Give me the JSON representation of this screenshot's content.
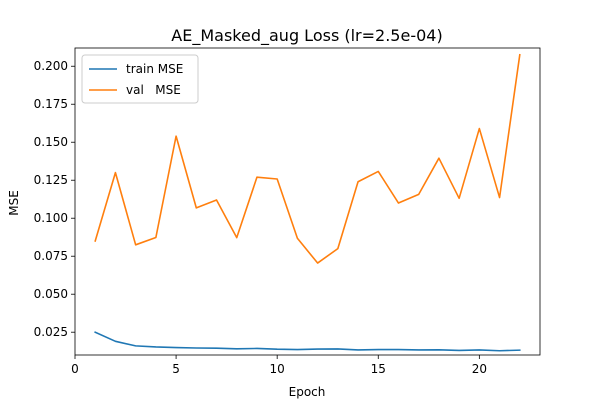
{
  "chart_data": {
    "type": "line",
    "title": "AE_Masked_aug Loss (lr=2.5e-04)",
    "xlabel": "Epoch",
    "ylabel": "MSE",
    "xlim": [
      0,
      23
    ],
    "ylim": [
      0.01,
      0.212
    ],
    "xticks": [
      0,
      5,
      10,
      15,
      20
    ],
    "yticks": [
      0.025,
      0.05,
      0.075,
      0.1,
      0.125,
      0.15,
      0.175,
      0.2
    ],
    "xtick_labels": [
      "0",
      "5",
      "10",
      "15",
      "20"
    ],
    "ytick_labels": [
      "0.025",
      "0.050",
      "0.075",
      "0.100",
      "0.125",
      "0.150",
      "0.175",
      "0.200"
    ],
    "grid": false,
    "legend_position": "top-left",
    "x": [
      1,
      2,
      3,
      4,
      5,
      6,
      7,
      8,
      9,
      10,
      11,
      12,
      13,
      14,
      15,
      16,
      17,
      18,
      19,
      20,
      21,
      22
    ],
    "series": [
      {
        "name": "train MSE",
        "color": "#1f77b4",
        "values": [
          0.025,
          0.019,
          0.016,
          0.0153,
          0.0149,
          0.0146,
          0.0145,
          0.0141,
          0.0143,
          0.0138,
          0.0136,
          0.0139,
          0.014,
          0.0133,
          0.0136,
          0.0136,
          0.0133,
          0.0134,
          0.013,
          0.0133,
          0.0128,
          0.0132
        ]
      },
      {
        "name": "val   MSE",
        "color": "#ff7f0e",
        "values": [
          0.085,
          0.13,
          0.0825,
          0.0873,
          0.154,
          0.1068,
          0.112,
          0.0872,
          0.127,
          0.1258,
          0.0868,
          0.0705,
          0.08,
          0.124,
          0.1308,
          0.11,
          0.1157,
          0.1395,
          0.1131,
          0.159,
          0.1136,
          0.2075
        ]
      }
    ]
  }
}
